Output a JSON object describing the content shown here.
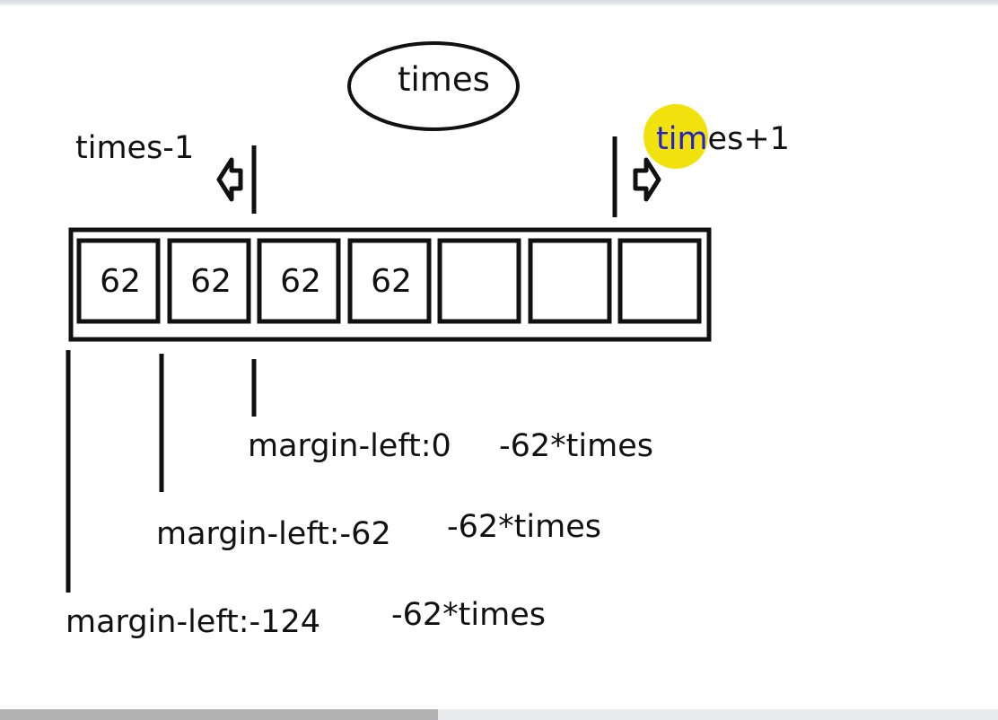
{
  "labels": {
    "times": "times",
    "times_minus_1": "times-1",
    "times_plus_1_prefix": "tim",
    "times_plus_1_suffix": "es+1",
    "margin_0": "margin-left:0",
    "margin_0_expr": "-62*times",
    "margin_62": "margin-left:-62",
    "margin_62_expr": "-62*times",
    "margin_124": "margin-left:-124",
    "margin_124_expr": "-62*times"
  },
  "cells": [
    "62",
    "62",
    "62",
    "62",
    "",
    "",
    ""
  ],
  "colors": {
    "ink": "#111111",
    "cursor_highlight": "#f0e000",
    "highlighted_text": "#2323c8"
  },
  "icons": {
    "left_arrow": "hollow-left-arrow",
    "right_arrow": "hollow-right-arrow",
    "cursor": "mouse-cursor-highlight"
  }
}
